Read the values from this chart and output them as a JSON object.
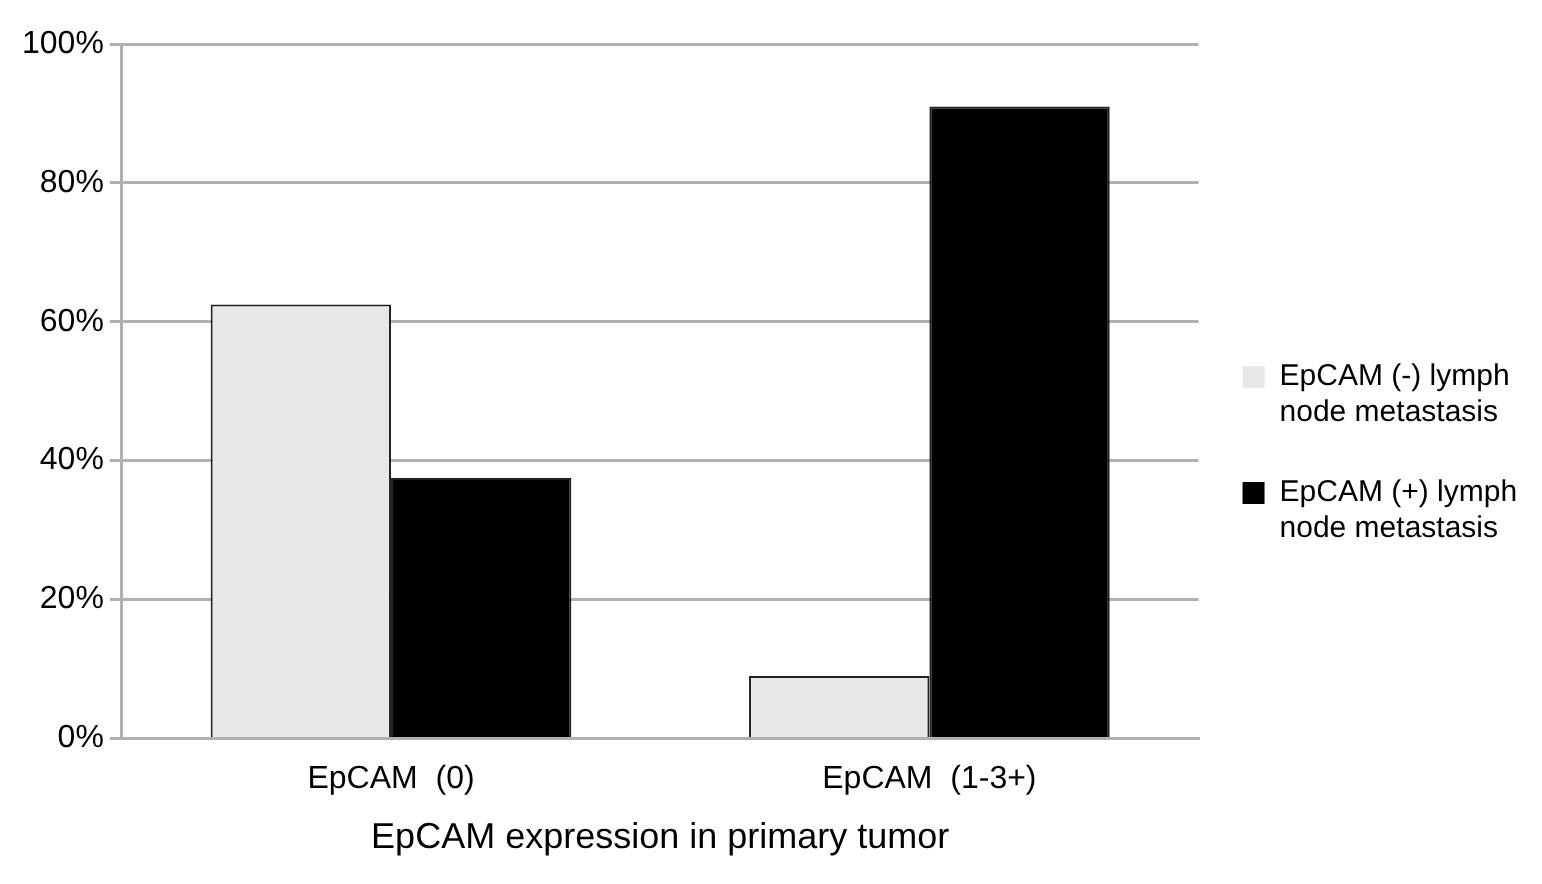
{
  "chart_data": {
    "type": "bar",
    "xlabel": "EpCAM expression in primary tumor",
    "categories": [
      "EpCAM  (0)",
      "EpCAM  (1-3+)"
    ],
    "series": [
      {
        "name": "EpCAM (-) lymph node metastasis",
        "color": "#e8e8e8",
        "values": [
          62.5,
          9
        ]
      },
      {
        "name": "EpCAM (+) lymph node metastasis",
        "color": "#000000",
        "values": [
          37.5,
          91
        ]
      }
    ],
    "ylim": [
      0,
      100
    ],
    "yticks": [
      {
        "value": 0,
        "label": "0%"
      },
      {
        "value": 20,
        "label": "20%"
      },
      {
        "value": 40,
        "label": "40%"
      },
      {
        "value": 60,
        "label": "60%"
      },
      {
        "value": 80,
        "label": "80%"
      },
      {
        "value": 100,
        "label": "100%"
      }
    ],
    "grid": "y",
    "legend": "right"
  }
}
